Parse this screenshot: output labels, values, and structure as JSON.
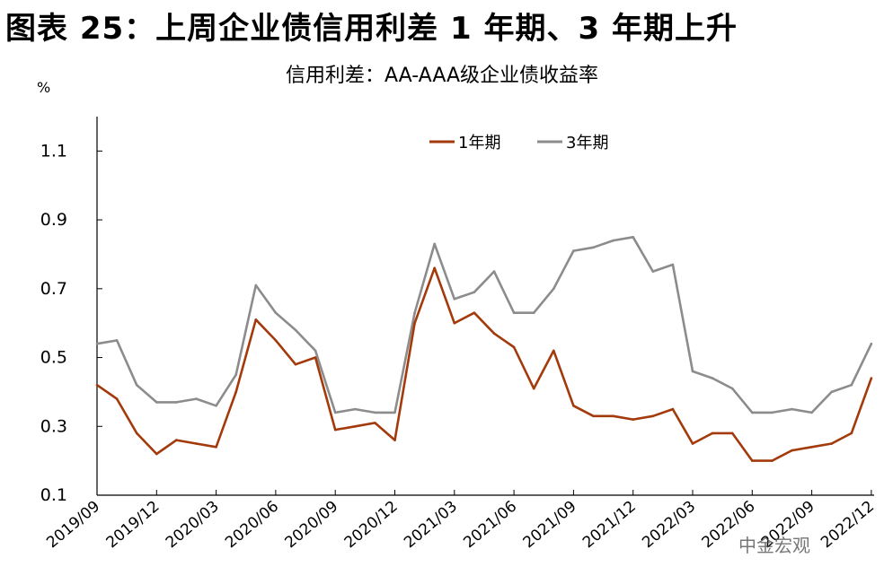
{
  "figure_title": "图表 25：上周企业债信用利差 1 年期、3 年期上升",
  "watermark": "中金宏观",
  "colors": {
    "series_1y": "#a33a0b",
    "series_3y": "#8c8c8c",
    "axis": "#000000"
  },
  "chart_data": {
    "type": "line",
    "title": "信用利差：AA-AAA级企业债收益率",
    "unit_label": "%",
    "ylim": [
      0.1,
      1.2
    ],
    "yticks": [
      "0.1",
      "0.3",
      "0.5",
      "0.7",
      "0.9",
      "1.1"
    ],
    "xticks": [
      "2019/09",
      "2019/12",
      "2020/03",
      "2020/06",
      "2020/09",
      "2020/12",
      "2021/03",
      "2021/06",
      "2021/09",
      "2021/12",
      "2022/03",
      "2022/06",
      "2022/09",
      "2022/12"
    ],
    "grid": false,
    "legend_position": "top-center",
    "series": [
      {
        "name": "1年期",
        "color": "#a33a0b",
        "x": [
          "2019/09",
          "2019/10",
          "2019/11",
          "2019/12",
          "2020/01",
          "2020/02",
          "2020/03",
          "2020/04",
          "2020/05",
          "2020/06",
          "2020/07",
          "2020/08",
          "2020/09",
          "2020/10",
          "2020/11",
          "2020/12",
          "2021/01",
          "2021/02",
          "2021/03",
          "2021/04",
          "2021/05",
          "2021/06",
          "2021/07",
          "2021/08",
          "2021/09",
          "2021/10",
          "2021/11",
          "2021/12",
          "2022/01",
          "2022/02",
          "2022/03",
          "2022/04",
          "2022/05",
          "2022/06",
          "2022/07",
          "2022/08",
          "2022/09",
          "2022/10",
          "2022/11",
          "2022/12"
        ],
        "values": [
          0.42,
          0.38,
          0.28,
          0.22,
          0.26,
          0.25,
          0.24,
          0.4,
          0.61,
          0.55,
          0.48,
          0.5,
          0.29,
          0.3,
          0.31,
          0.26,
          0.6,
          0.76,
          0.6,
          0.63,
          0.57,
          0.53,
          0.41,
          0.52,
          0.36,
          0.33,
          0.33,
          0.32,
          0.33,
          0.35,
          0.25,
          0.28,
          0.28,
          0.2,
          0.2,
          0.23,
          0.24,
          0.25,
          0.28,
          0.44
        ]
      },
      {
        "name": "3年期",
        "color": "#8c8c8c",
        "x": [
          "2019/09",
          "2019/10",
          "2019/11",
          "2019/12",
          "2020/01",
          "2020/02",
          "2020/03",
          "2020/04",
          "2020/05",
          "2020/06",
          "2020/07",
          "2020/08",
          "2020/09",
          "2020/10",
          "2020/11",
          "2020/12",
          "2021/01",
          "2021/02",
          "2021/03",
          "2021/04",
          "2021/05",
          "2021/06",
          "2021/07",
          "2021/08",
          "2021/09",
          "2021/10",
          "2021/11",
          "2021/12",
          "2022/01",
          "2022/02",
          "2022/03",
          "2022/04",
          "2022/05",
          "2022/06",
          "2022/07",
          "2022/08",
          "2022/09",
          "2022/10",
          "2022/11",
          "2022/12"
        ],
        "values": [
          0.54,
          0.55,
          0.42,
          0.37,
          0.37,
          0.38,
          0.36,
          0.45,
          0.71,
          0.63,
          0.58,
          0.52,
          0.34,
          0.35,
          0.34,
          0.34,
          0.63,
          0.83,
          0.67,
          0.69,
          0.75,
          0.63,
          0.63,
          0.7,
          0.81,
          0.82,
          0.84,
          0.85,
          0.75,
          0.77,
          0.46,
          0.44,
          0.41,
          0.34,
          0.34,
          0.35,
          0.34,
          0.4,
          0.42,
          0.54
        ]
      }
    ]
  }
}
